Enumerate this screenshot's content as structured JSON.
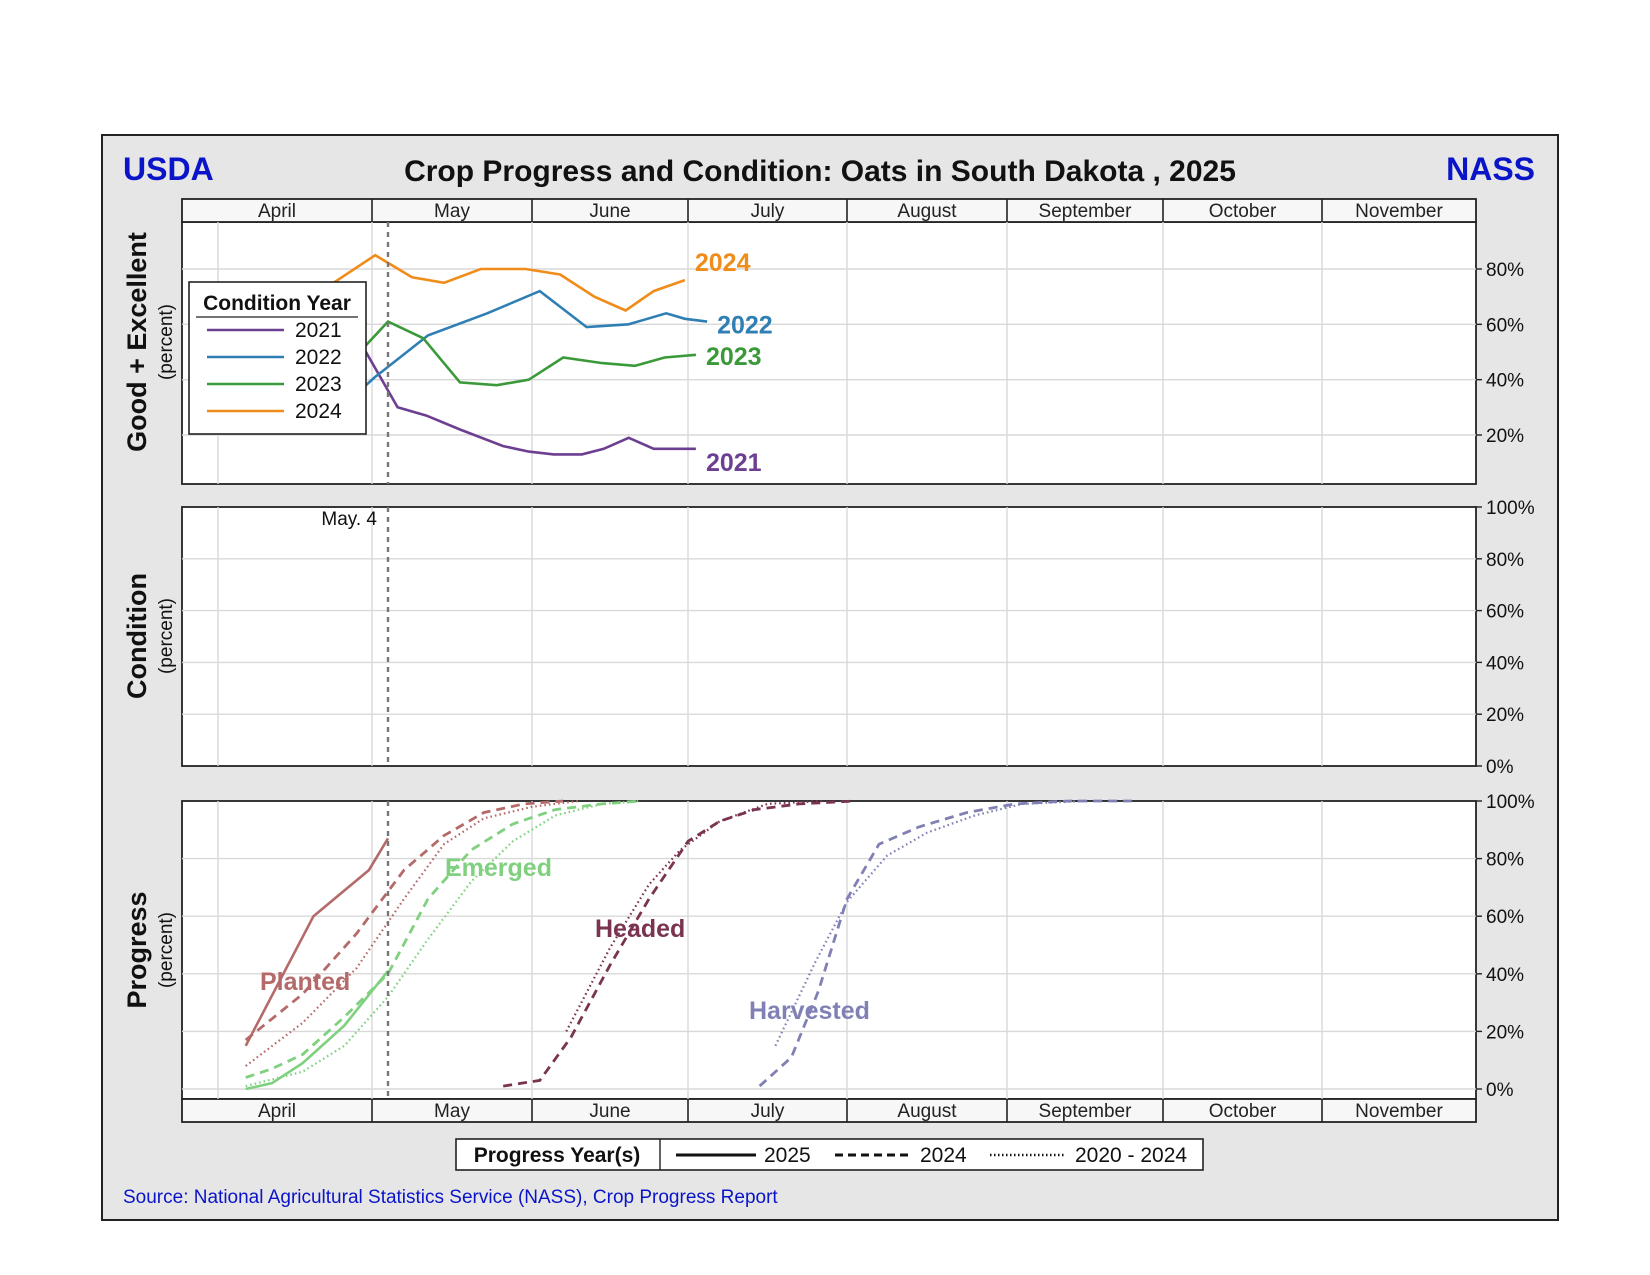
{
  "header": {
    "left_logo": "USDA",
    "right_logo": "NASS",
    "title": "Crop Progress and Condition: Oats in South Dakota , 2025"
  },
  "months": [
    "April",
    "May",
    "June",
    "July",
    "August",
    "September",
    "October",
    "November"
  ],
  "current_week_label": "May.  4",
  "source": "Source: National Agricultural Statistics Service (NASS), Crop Progress Report",
  "colors": {
    "frame_bg": "#e6e6e6",
    "brand_blue": "#0a14c8",
    "year_2021": "#6d3f91",
    "year_2022": "#2f7fb5",
    "year_2023": "#3a9a3a",
    "year_2024": "#f08c1a",
    "planted": "#b56a6a",
    "emerged": "#7fd07f",
    "headed": "#7a3350",
    "harvested": "#8080b4"
  },
  "panels": {
    "good_excellent": {
      "ylabel": "Good + Excellent",
      "ysub": "(percent)",
      "ticks": [
        "20%",
        "40%",
        "60%",
        "80%"
      ]
    },
    "condition": {
      "ylabel": "Condition",
      "ysub": "(percent)",
      "ticks": [
        "0%",
        "20%",
        "40%",
        "60%",
        "80%",
        "100%"
      ]
    },
    "progress": {
      "ylabel": "Progress",
      "ysub": "(percent)",
      "ticks": [
        "0%",
        "20%",
        "40%",
        "60%",
        "80%",
        "100%"
      ]
    }
  },
  "condition_legend": {
    "title": "Condition Year",
    "items": [
      "2021",
      "2022",
      "2023",
      "2024"
    ]
  },
  "progress_legend": {
    "title": "Progress Year(s)",
    "items": [
      "2025",
      "2024",
      "2020 - 2024"
    ]
  },
  "chart_data": [
    {
      "type": "line",
      "title": "Good + Excellent",
      "x_axis": "month (1 = April 1, 2 = May 1, ...)",
      "ylim": [
        5,
        100
      ],
      "series": [
        {
          "name": "2021",
          "color": "#6d3f91",
          "x": [
            1.25,
            1.48,
            1.72,
            1.94,
            2.16,
            2.34,
            2.55,
            2.82,
            2.98,
            3.14,
            3.32,
            3.46,
            3.62,
            3.78,
            4.05
          ],
          "y": [
            41,
            41,
            43,
            52,
            30,
            27,
            22,
            16,
            14,
            13,
            13,
            15,
            19,
            15,
            15
          ]
        },
        {
          "name": "2022",
          "color": "#2f7fb5",
          "x": [
            1.72,
            2.02,
            2.35,
            2.72,
            3.05,
            3.35,
            3.62,
            3.86,
            3.98,
            4.12
          ],
          "y": [
            26,
            41,
            56,
            64,
            72,
            59,
            60,
            64,
            62,
            61
          ]
        },
        {
          "name": "2023",
          "color": "#3a9a3a",
          "x": [
            1.68,
            1.92,
            2.1,
            2.32,
            2.55,
            2.78,
            2.98,
            3.2,
            3.45,
            3.66,
            3.85,
            4.05
          ],
          "y": [
            44,
            50,
            61,
            55,
            39,
            38,
            40,
            48,
            46,
            45,
            48,
            49
          ]
        },
        {
          "name": "2024",
          "color": "#f08c1a",
          "x": [
            1.52,
            1.75,
            2.02,
            2.25,
            2.45,
            2.68,
            2.96,
            3.18,
            3.4,
            3.6,
            3.78,
            3.98
          ],
          "y": [
            72,
            75,
            85,
            77,
            75,
            80,
            80,
            78,
            70,
            65,
            72,
            76
          ]
        }
      ]
    },
    {
      "type": "line",
      "title": "Condition",
      "ylim": [
        0,
        100
      ],
      "series": []
    },
    {
      "type": "line",
      "title": "Progress",
      "x_axis": "month (1 = April 1, 2 = May 1, ...)",
      "ylim": [
        0,
        100
      ],
      "series": [
        {
          "name": "Planted",
          "year": "2025",
          "color": "#b56a6a",
          "style": "solid",
          "x": [
            1.18,
            1.62,
            1.98,
            2.1
          ],
          "y": [
            15,
            60,
            76,
            87
          ]
        },
        {
          "name": "Planted",
          "year": "2024",
          "color": "#b56a6a",
          "style": "dashed",
          "x": [
            1.18,
            1.55,
            1.9,
            2.2,
            2.45,
            2.7,
            2.95,
            3.2
          ],
          "y": [
            17,
            33,
            54,
            76,
            88,
            96,
            99,
            100
          ]
        },
        {
          "name": "Planted",
          "year": "2020 - 2024",
          "color": "#b56a6a",
          "style": "dotted",
          "x": [
            1.18,
            1.55,
            1.9,
            2.2,
            2.45,
            2.7,
            3.0,
            3.3
          ],
          "y": [
            8,
            23,
            42,
            66,
            85,
            94,
            98,
            100
          ]
        },
        {
          "name": "Emerged",
          "year": "2025",
          "color": "#7fd07f",
          "style": "solid",
          "x": [
            1.18,
            1.35,
            1.55,
            1.82,
            2.1
          ],
          "y": [
            0,
            2,
            9,
            22,
            41
          ]
        },
        {
          "name": "Emerged",
          "year": "2024",
          "color": "#7fd07f",
          "style": "dashed",
          "x": [
            1.18,
            1.35,
            1.55,
            1.82,
            2.1,
            2.35,
            2.62,
            2.88,
            3.15,
            3.45,
            3.7
          ],
          "y": [
            4,
            7,
            12,
            25,
            40,
            66,
            83,
            92,
            97,
            99,
            100
          ]
        },
        {
          "name": "Emerged",
          "year": "2020 - 2024",
          "color": "#7fd07f",
          "style": "dotted",
          "x": [
            1.18,
            1.55,
            1.82,
            2.1,
            2.35,
            2.62,
            2.88,
            3.15,
            3.45,
            3.7
          ],
          "y": [
            1,
            6,
            15,
            32,
            52,
            72,
            86,
            95,
            99,
            100
          ]
        },
        {
          "name": "Headed",
          "year": "2024",
          "color": "#7a3350",
          "style": "dashed",
          "x": [
            2.82,
            3.05,
            3.25,
            3.5,
            3.75,
            4.0,
            4.2,
            4.42,
            4.7,
            5.05
          ],
          "y": [
            1,
            3,
            18,
            43,
            66,
            86,
            93,
            97,
            99,
            100
          ]
        },
        {
          "name": "Headed",
          "year": "2020 - 2024",
          "color": "#7a3350",
          "style": "dotted",
          "x": [
            3.22,
            3.5,
            3.75,
            3.95,
            4.2,
            4.5,
            4.85
          ],
          "y": [
            20,
            49,
            71,
            83,
            93,
            99,
            100
          ]
        },
        {
          "name": "Harvested",
          "year": "2024",
          "color": "#8080b4",
          "style": "dashed",
          "x": [
            4.45,
            4.65,
            4.82,
            5.0,
            5.2,
            5.45,
            5.75,
            6.05,
            6.4,
            6.8
          ],
          "y": [
            1,
            11,
            34,
            66,
            85,
            91,
            96,
            99,
            100,
            100
          ]
        },
        {
          "name": "Harvested",
          "year": "2020 - 2024",
          "color": "#8080b4",
          "style": "dotted",
          "x": [
            4.55,
            4.8,
            5.0,
            5.25,
            5.5,
            5.8,
            6.1,
            6.5
          ],
          "y": [
            15,
            44,
            65,
            81,
            89,
            95,
            99,
            100
          ]
        }
      ],
      "labels": [
        {
          "text": "Planted",
          "color": "#b56a6a"
        },
        {
          "text": "Emerged",
          "color": "#7fd07f"
        },
        {
          "text": "Headed",
          "color": "#7a3350"
        },
        {
          "text": "Harvested",
          "color": "#8080b4"
        }
      ]
    }
  ]
}
